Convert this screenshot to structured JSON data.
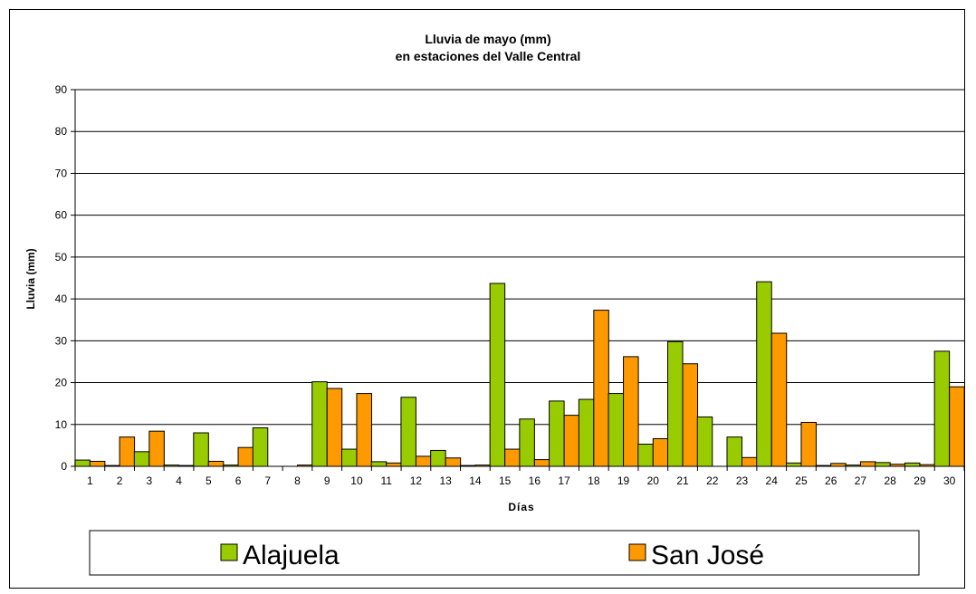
{
  "chart_data": {
    "type": "bar",
    "title": "Lluvia de mayo (mm)",
    "subtitle": "en estaciones del Valle Central",
    "xlabel": "Días",
    "ylabel": "Lluvia (mm)",
    "ylim": [
      0,
      90
    ],
    "yticks": [
      "0",
      "10",
      "20",
      "30",
      "40",
      "50",
      "60",
      "70",
      "80",
      "90"
    ],
    "grid": true,
    "legend_position": "bottom",
    "categories": [
      "1",
      "2",
      "3",
      "4",
      "5",
      "6",
      "7",
      "8",
      "9",
      "10",
      "11",
      "12",
      "13",
      "14",
      "15",
      "16",
      "17",
      "18",
      "19",
      "20",
      "21",
      "22",
      "23",
      "24",
      "25",
      "26",
      "27",
      "28",
      "29",
      "30"
    ],
    "series": [
      {
        "name": "Alajuela",
        "color": "#99cc00",
        "values": [
          1.5,
          0.2,
          3.5,
          0.3,
          8.0,
          0.3,
          9.2,
          0.0,
          20.2,
          4.1,
          1.1,
          16.5,
          3.8,
          0.2,
          43.7,
          11.3,
          15.6,
          16.0,
          17.4,
          5.3,
          29.8,
          11.8,
          7.0,
          44.1,
          0.8,
          0.2,
          0.3,
          0.9,
          0.8,
          27.5
        ]
      },
      {
        "name": "San José",
        "color": "#ff9900",
        "values": [
          1.2,
          7.0,
          8.4,
          0.2,
          1.2,
          4.5,
          0.0,
          0.3,
          18.6,
          17.4,
          0.8,
          2.4,
          2.0,
          0.3,
          4.1,
          1.6,
          12.2,
          37.3,
          26.2,
          6.6,
          24.5,
          0.0,
          2.1,
          31.8,
          10.5,
          0.7,
          1.1,
          0.5,
          0.4,
          19.0
        ]
      }
    ]
  }
}
